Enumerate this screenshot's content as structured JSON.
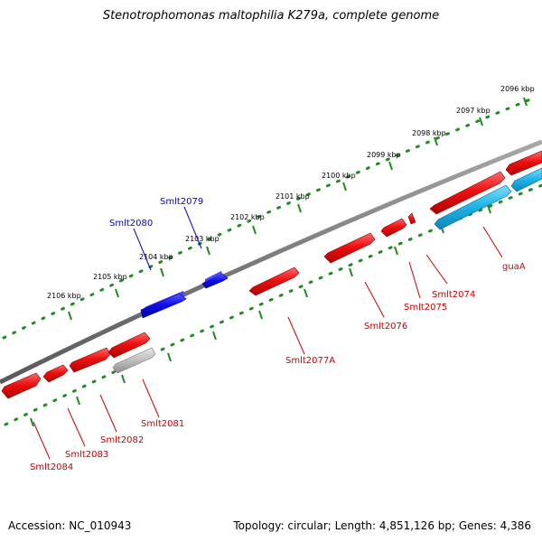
{
  "title": "Stenotrophomonas maltophilia K279a, complete genome",
  "footer": {
    "accession": "Accession: NC_010943",
    "topology": "Topology: circular; Length: 4,851,126 bp; Genes: 4,386"
  },
  "colors": {
    "backbone": "#808080",
    "ruler": "#228b22",
    "forward_gene": "#e00000",
    "forward_label": "#cc0000",
    "reverse_gene": "#0000dd",
    "reverse_label": "#0000cc",
    "rna_gene": "#20b0e0",
    "pseudo_gene": "#b8b8b8"
  },
  "ruler": {
    "ticks": [
      {
        "label": "2096 kbp"
      },
      {
        "label": "2097 kbp"
      },
      {
        "label": "2098 kbp"
      },
      {
        "label": "2099 kbp"
      },
      {
        "label": "2100 kbp"
      },
      {
        "label": "2101 kbp"
      },
      {
        "label": "2102 kbp"
      },
      {
        "label": "2103 kbp"
      },
      {
        "label": "2104 kbp"
      },
      {
        "label": "2105 kbp"
      },
      {
        "label": "2106 kbp"
      }
    ]
  },
  "genes": [
    {
      "name": "Smlt2080",
      "strand": "reverse"
    },
    {
      "name": "Smlt2079",
      "strand": "reverse"
    },
    {
      "name": "guaA",
      "strand": "forward"
    },
    {
      "name": "Smlt2074",
      "strand": "forward"
    },
    {
      "name": "Smlt2075",
      "strand": "forward"
    },
    {
      "name": "Smlt2076",
      "strand": "forward"
    },
    {
      "name": "Smlt2077A",
      "strand": "forward"
    },
    {
      "name": "Smlt2081",
      "strand": "forward"
    },
    {
      "name": "Smlt2082",
      "strand": "forward"
    },
    {
      "name": "Smlt2083",
      "strand": "forward"
    },
    {
      "name": "Smlt2084",
      "strand": "forward"
    }
  ]
}
